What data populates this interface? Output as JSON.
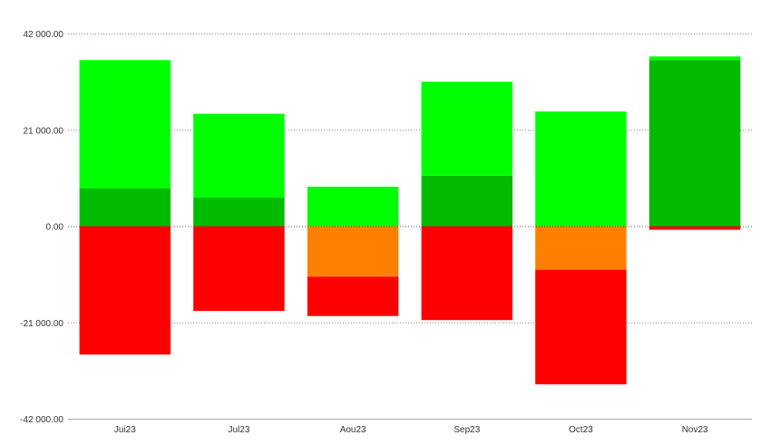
{
  "chart_data": {
    "type": "bar",
    "stacked": true,
    "categories": [
      "Jui23",
      "Jul23",
      "Aou23",
      "Sep23",
      "Oct23",
      "Nov23"
    ],
    "y_tick_labels": [
      "42 000.00",
      "21 000.00",
      "0.00",
      "-21 000.00",
      "-42 000.00"
    ],
    "y_tick_values": [
      42000,
      21000,
      0,
      -21000,
      -42000
    ],
    "ylim": [
      -42000,
      42000
    ],
    "grid": true,
    "legend": "none",
    "series": [
      {
        "color": "#00bb00",
        "values": [
          8200,
          6200,
          0,
          11000,
          0,
          36200
        ]
      },
      {
        "color": "#00ff00",
        "values": [
          28000,
          18300,
          8600,
          20500,
          25000,
          800
        ]
      },
      {
        "color": "#ff8000",
        "values": [
          0,
          0,
          -11000,
          0,
          -9500,
          0
        ]
      },
      {
        "color": "#ff0000",
        "values": [
          -28000,
          -18500,
          -8600,
          -20500,
          -25000,
          -800
        ]
      }
    ]
  }
}
